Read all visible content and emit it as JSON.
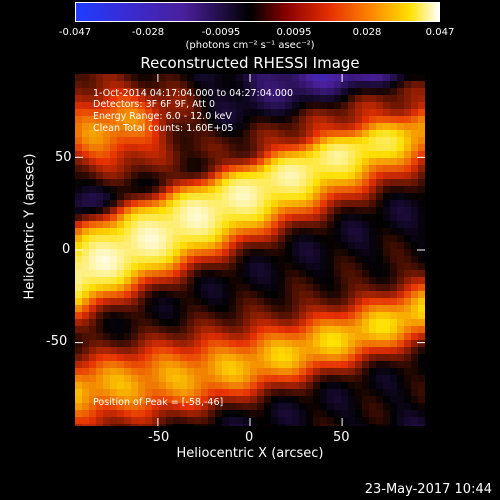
{
  "colorbar": {
    "ticks": [
      "-0.047",
      "-0.028",
      "-0.0095",
      "0.0095",
      "0.028",
      "0.047"
    ],
    "units": "(photons cm⁻² s⁻¹ asec⁻²)",
    "colors": [
      "#1f3cff",
      "#4a1f9a",
      "#000000",
      "#e63000",
      "#ffe000",
      "#ffffff"
    ]
  },
  "chart_data": {
    "type": "heatmap",
    "title": "Reconstructed RHESSI Image",
    "xlabel": "Heliocentric X (arcsec)",
    "ylabel": "Heliocentric Y (arcsec)",
    "xlim": [
      -95,
      95
    ],
    "ylim": [
      -95,
      95
    ],
    "xticks": [
      "-50",
      "0",
      "50"
    ],
    "yticks": [
      "50",
      "0",
      "-50"
    ],
    "clim": [
      -0.047,
      0.047
    ],
    "info_lines": [
      "1-Oct-2014 04:17:04.000 to 04:27:04.000",
      "Detectors: 3F 6F 9F, Att 0",
      "Energy Range: 6.0 - 12.0 keV",
      "Clean     Total counts: 1.60E+05"
    ],
    "peak_label": "Position of Peak = [-58,-46]",
    "peak_position": [
      -58,
      -46
    ]
  },
  "timestamp": "23-May-2017 10:44"
}
